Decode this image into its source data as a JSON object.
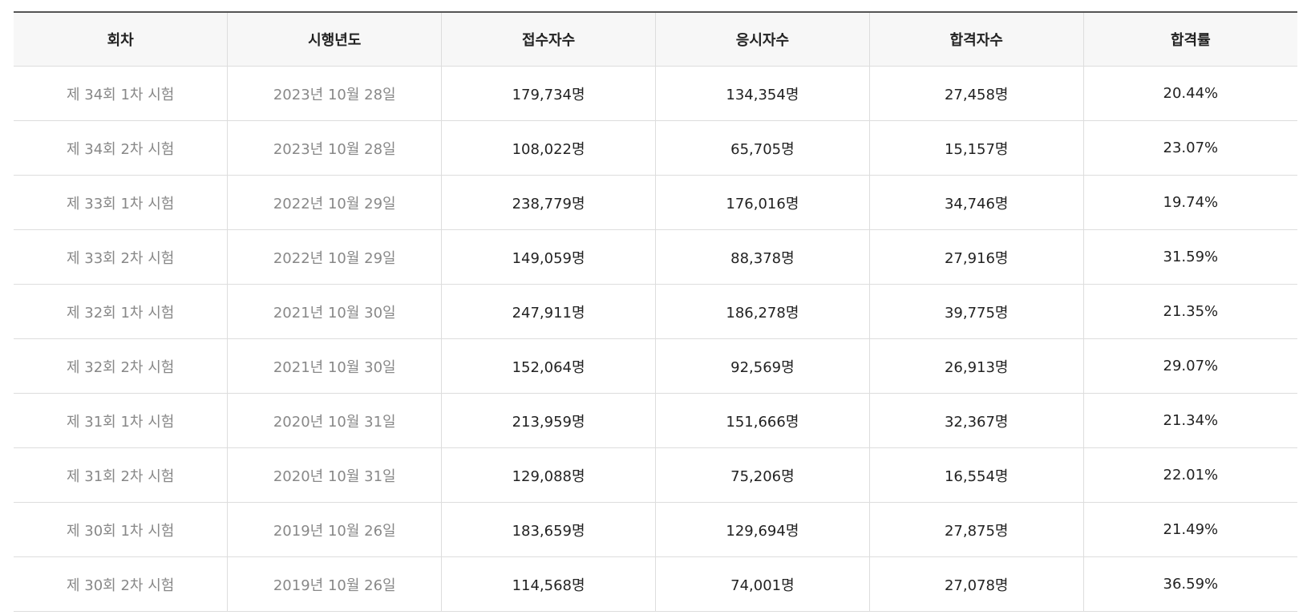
{
  "table": {
    "headers": [
      "회차",
      "시행년도",
      "접수자수",
      "응시자수",
      "합격자수",
      "합격률"
    ],
    "rows": [
      [
        "제 34회 1차 시험",
        "2023년 10월 28일",
        "179,734명",
        "134,354명",
        "27,458명",
        "20.44%"
      ],
      [
        "제 34회 2차 시험",
        "2023년 10월 28일",
        "108,022명",
        "65,705명",
        "15,157명",
        "23.07%"
      ],
      [
        "제 33회 1차 시험",
        "2022년 10월 29일",
        "238,779명",
        "176,016명",
        "34,746명",
        "19.74%"
      ],
      [
        "제 33회 2차 시험",
        "2022년 10월 29일",
        "149,059명",
        "88,378명",
        "27,916명",
        "31.59%"
      ],
      [
        "제 32회 1차 시험",
        "2021년 10월 30일",
        "247,911명",
        "186,278명",
        "39,775명",
        "21.35%"
      ],
      [
        "제 32회 2차 시험",
        "2021년 10월 30일",
        "152,064명",
        "92,569명",
        "26,913명",
        "29.07%"
      ],
      [
        "제 31회 1차 시험",
        "2020년 10월 31일",
        "213,959명",
        "151,666명",
        "32,367명",
        "21.34%"
      ],
      [
        "제 31회 2차 시험",
        "2020년 10월 31일",
        "129,088명",
        "75,206명",
        "16,554명",
        "22.01%"
      ],
      [
        "제 30회 1차 시험",
        "2019년 10월 26일",
        "183,659명",
        "129,694명",
        "27,875명",
        "21.49%"
      ],
      [
        "제 30회 2차 시험",
        "2019년 10월 26일",
        "114,568명",
        "74,001명",
        "27,078명",
        "36.59%"
      ]
    ]
  },
  "colors": {
    "header_background": "#f7f7f7",
    "top_border": "#555555",
    "cell_border": "#dddddd",
    "text": "#222222",
    "muted_text": "#888888"
  }
}
